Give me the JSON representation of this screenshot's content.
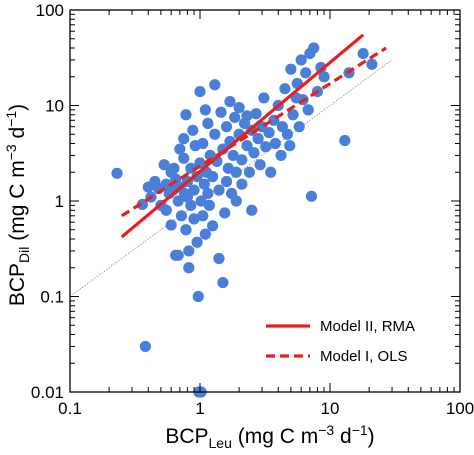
{
  "chart_data": {
    "type": "scatter",
    "xscale": "log",
    "yscale": "log",
    "xlim": [
      0.1,
      100
    ],
    "ylim": [
      0.01,
      100
    ],
    "xticks": [
      0.1,
      1,
      10,
      100
    ],
    "xtick_labels": [
      "0.1",
      "1",
      "10",
      "100"
    ],
    "yticks": [
      0.01,
      0.1,
      1,
      10,
      100
    ],
    "ytick_labels": [
      "0.01",
      "0.1",
      "1",
      "10",
      "100"
    ],
    "xlabel": {
      "base": "BCP",
      "subscript": "Leu",
      "units_open": " (mg C m",
      "units_exp1": "−3",
      "units_mid": " d",
      "units_exp2": "−1",
      "units_close": ")"
    },
    "ylabel": {
      "base": "BCP",
      "subscript": "Dil",
      "units_open": " (mg C m",
      "units_exp1": "−3",
      "units_mid": " d",
      "units_exp2": "−1",
      "units_close": ")"
    },
    "grid": false,
    "legend": {
      "placement": "bottom-right",
      "entries": [
        {
          "label": "Model II, RMA",
          "style": "solid",
          "color": "#e8201c"
        },
        {
          "label": "Model I, OLS",
          "style": "dashed",
          "color": "#e8201c"
        }
      ]
    },
    "colors": {
      "points": "#4a7fd9",
      "fit": "#e8201c",
      "one_to_one": "#8a8a8a"
    },
    "reference_line": {
      "name": "1:1",
      "x": [
        0.1,
        30
      ],
      "y": [
        0.1,
        30
      ]
    },
    "fit_lines": [
      {
        "name": "Model II, RMA",
        "style": "solid",
        "x": [
          0.25,
          18
        ],
        "y": [
          0.42,
          55
        ]
      },
      {
        "name": "Model I, OLS",
        "style": "dashed",
        "x": [
          0.25,
          27
        ],
        "y": [
          0.7,
          40
        ]
      }
    ],
    "points": [
      {
        "x": 0.23,
        "y": 1.95
      },
      {
        "x": 0.36,
        "y": 0.92
      },
      {
        "x": 0.4,
        "y": 1.4
      },
      {
        "x": 0.42,
        "y": 1.1
      },
      {
        "x": 0.45,
        "y": 1.6
      },
      {
        "x": 0.48,
        "y": 1.35
      },
      {
        "x": 0.5,
        "y": 0.9
      },
      {
        "x": 0.53,
        "y": 2.4
      },
      {
        "x": 0.55,
        "y": 1.5
      },
      {
        "x": 0.55,
        "y": 0.8
      },
      {
        "x": 0.58,
        "y": 1.2
      },
      {
        "x": 0.6,
        "y": 2.0
      },
      {
        "x": 0.6,
        "y": 0.56
      },
      {
        "x": 0.62,
        "y": 1.3
      },
      {
        "x": 0.63,
        "y": 2.2
      },
      {
        "x": 0.65,
        "y": 1.7
      },
      {
        "x": 0.65,
        "y": 0.27
      },
      {
        "x": 0.68,
        "y": 0.27
      },
      {
        "x": 0.68,
        "y": 1.0
      },
      {
        "x": 0.7,
        "y": 1.4
      },
      {
        "x": 0.7,
        "y": 3.5
      },
      {
        "x": 0.72,
        "y": 0.7
      },
      {
        "x": 0.75,
        "y": 2.8
      },
      {
        "x": 0.75,
        "y": 4.5
      },
      {
        "x": 0.76,
        "y": 1.2
      },
      {
        "x": 0.78,
        "y": 0.5
      },
      {
        "x": 0.78,
        "y": 8.0
      },
      {
        "x": 0.8,
        "y": 1.6
      },
      {
        "x": 0.8,
        "y": 1.1
      },
      {
        "x": 0.82,
        "y": 0.3
      },
      {
        "x": 0.82,
        "y": 0.2
      },
      {
        "x": 0.85,
        "y": 0.9
      },
      {
        "x": 0.85,
        "y": 2.2
      },
      {
        "x": 0.88,
        "y": 5.5
      },
      {
        "x": 0.9,
        "y": 1.3
      },
      {
        "x": 0.9,
        "y": 0.65
      },
      {
        "x": 0.92,
        "y": 3.8
      },
      {
        "x": 0.95,
        "y": 0.37
      },
      {
        "x": 0.95,
        "y": 1.8
      },
      {
        "x": 0.97,
        "y": 0.1
      },
      {
        "x": 1.0,
        "y": 2.5
      },
      {
        "x": 1.0,
        "y": 14.0
      },
      {
        "x": 1.02,
        "y": 1.0
      },
      {
        "x": 1.05,
        "y": 0.7
      },
      {
        "x": 1.05,
        "y": 4.0
      },
      {
        "x": 1.08,
        "y": 1.5
      },
      {
        "x": 1.1,
        "y": 9.0
      },
      {
        "x": 1.1,
        "y": 0.45
      },
      {
        "x": 1.12,
        "y": 2.0
      },
      {
        "x": 1.15,
        "y": 6.5
      },
      {
        "x": 1.15,
        "y": 1.2
      },
      {
        "x": 1.18,
        "y": 0.9
      },
      {
        "x": 1.2,
        "y": 3.0
      },
      {
        "x": 1.25,
        "y": 1.8
      },
      {
        "x": 1.25,
        "y": 0.55
      },
      {
        "x": 1.3,
        "y": 16.5
      },
      {
        "x": 1.3,
        "y": 5.0
      },
      {
        "x": 1.35,
        "y": 2.6
      },
      {
        "x": 1.4,
        "y": 1.3
      },
      {
        "x": 1.4,
        "y": 0.25
      },
      {
        "x": 1.45,
        "y": 8.5
      },
      {
        "x": 1.5,
        "y": 3.5
      },
      {
        "x": 1.5,
        "y": 0.14
      },
      {
        "x": 1.55,
        "y": 0.75
      },
      {
        "x": 1.6,
        "y": 1.6
      },
      {
        "x": 1.6,
        "y": 6.0
      },
      {
        "x": 1.65,
        "y": 2.2
      },
      {
        "x": 1.7,
        "y": 4.2
      },
      {
        "x": 1.7,
        "y": 11.0
      },
      {
        "x": 1.75,
        "y": 1.2
      },
      {
        "x": 1.8,
        "y": 3.0
      },
      {
        "x": 1.85,
        "y": 7.5
      },
      {
        "x": 1.9,
        "y": 2.0
      },
      {
        "x": 1.9,
        "y": 1.0
      },
      {
        "x": 2.0,
        "y": 5.0
      },
      {
        "x": 2.0,
        "y": 9.5
      },
      {
        "x": 2.1,
        "y": 2.7
      },
      {
        "x": 2.1,
        "y": 1.5
      },
      {
        "x": 2.2,
        "y": 6.5
      },
      {
        "x": 2.3,
        "y": 3.8
      },
      {
        "x": 2.3,
        "y": 7.8
      },
      {
        "x": 2.4,
        "y": 2.0
      },
      {
        "x": 2.5,
        "y": 5.5
      },
      {
        "x": 2.5,
        "y": 0.8
      },
      {
        "x": 2.6,
        "y": 3.2
      },
      {
        "x": 2.7,
        "y": 8.2
      },
      {
        "x": 2.8,
        "y": 4.5
      },
      {
        "x": 2.9,
        "y": 2.4
      },
      {
        "x": 3.0,
        "y": 6.0
      },
      {
        "x": 3.1,
        "y": 12.0
      },
      {
        "x": 3.2,
        "y": 3.7
      },
      {
        "x": 3.4,
        "y": 5.2
      },
      {
        "x": 3.5,
        "y": 2.0
      },
      {
        "x": 3.7,
        "y": 7.0
      },
      {
        "x": 3.8,
        "y": 4.0
      },
      {
        "x": 4.0,
        "y": 10.0
      },
      {
        "x": 4.2,
        "y": 3.0
      },
      {
        "x": 4.3,
        "y": 6.0
      },
      {
        "x": 4.5,
        "y": 15.0
      },
      {
        "x": 4.7,
        "y": 5.0
      },
      {
        "x": 4.9,
        "y": 3.8
      },
      {
        "x": 5.0,
        "y": 24.0
      },
      {
        "x": 5.2,
        "y": 8.0
      },
      {
        "x": 5.5,
        "y": 12.0
      },
      {
        "x": 5.6,
        "y": 17.0
      },
      {
        "x": 5.8,
        "y": 6.0
      },
      {
        "x": 6.0,
        "y": 30.0
      },
      {
        "x": 6.2,
        "y": 11.5
      },
      {
        "x": 6.5,
        "y": 22.0
      },
      {
        "x": 6.8,
        "y": 9.0
      },
      {
        "x": 7.0,
        "y": 35.0
      },
      {
        "x": 7.2,
        "y": 1.12
      },
      {
        "x": 7.5,
        "y": 40.0
      },
      {
        "x": 8.0,
        "y": 14.0
      },
      {
        "x": 8.5,
        "y": 25.0
      },
      {
        "x": 9.0,
        "y": 20.0
      },
      {
        "x": 13.0,
        "y": 4.3
      },
      {
        "x": 14.0,
        "y": 22.0
      },
      {
        "x": 18.0,
        "y": 35.0
      },
      {
        "x": 21.0,
        "y": 27.0
      },
      {
        "x": 0.38,
        "y": 0.03
      },
      {
        "x": 0.98,
        "y": 0.01
      },
      {
        "x": 1.02,
        "y": 0.01
      }
    ]
  }
}
